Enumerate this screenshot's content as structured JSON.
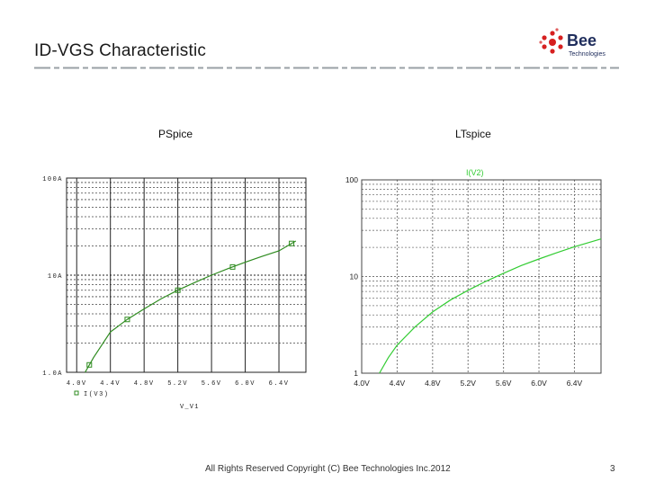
{
  "slide": {
    "title": "ID-VGS Characteristic",
    "footer": "All Rights Reserved Copyright (C) Bee Technologies Inc.2012",
    "page_number": "3",
    "logo": {
      "word": "Bee",
      "sub": "Technologies"
    },
    "colors": {
      "accent_red": "#d62020",
      "navy": "#1f2d5c",
      "curve_pspice": "#2e8b1f",
      "curve_ltspice": "#33cc33",
      "rule_gray": "#9aa0a6"
    }
  },
  "labels": {
    "pspice": "PSpice",
    "ltspice": "LTspice"
  },
  "chart_data": [
    {
      "type": "line",
      "title": "",
      "xlabel": "V_V1",
      "ylabel": "",
      "yscale": "log",
      "xlim": [
        3.88,
        6.72
      ],
      "ylim": [
        1,
        100
      ],
      "x_ticks": [
        "4.0V",
        "4.4V",
        "4.8V",
        "5.2V",
        "5.6V",
        "6.0V",
        "6.4V"
      ],
      "y_ticks": [
        "1.0A",
        "10A",
        "100A"
      ],
      "grid": true,
      "legend_position": "bottom-left",
      "series": [
        {
          "name": "I(V3)",
          "marker": "square",
          "x": [
            4.1,
            4.2,
            4.3,
            4.4,
            4.6,
            4.8,
            5.0,
            5.2,
            5.4,
            5.6,
            5.8,
            6.0,
            6.2,
            6.4,
            6.6
          ],
          "y": [
            1.0,
            1.42,
            1.92,
            2.6,
            3.5,
            4.5,
            5.7,
            7.0,
            8.4,
            10.0,
            11.7,
            13.6,
            15.6,
            17.8,
            22.5
          ],
          "marker_x": [
            4.15,
            4.6,
            5.2,
            5.85,
            6.55
          ]
        }
      ]
    },
    {
      "type": "line",
      "title": "",
      "xlabel": "",
      "ylabel": "",
      "yscale": "log",
      "xlim": [
        4.0,
        6.7
      ],
      "ylim": [
        1,
        100
      ],
      "x_ticks": [
        "4.0V",
        "4.4V",
        "4.8V",
        "5.2V",
        "5.6V",
        "6.0V",
        "6.4V"
      ],
      "y_ticks": [
        "1",
        "10",
        "100"
      ],
      "grid": true,
      "legend_position": "top-center",
      "series": [
        {
          "name": "I(V2)",
          "x": [
            4.2,
            4.3,
            4.4,
            4.6,
            4.8,
            5.0,
            5.2,
            5.4,
            5.6,
            5.8,
            6.0,
            6.2,
            6.4,
            6.7
          ],
          "y": [
            1.0,
            1.45,
            1.95,
            3.0,
            4.3,
            5.7,
            7.2,
            8.9,
            10.8,
            13.0,
            15.2,
            17.6,
            20.3,
            24.5
          ]
        }
      ]
    }
  ]
}
